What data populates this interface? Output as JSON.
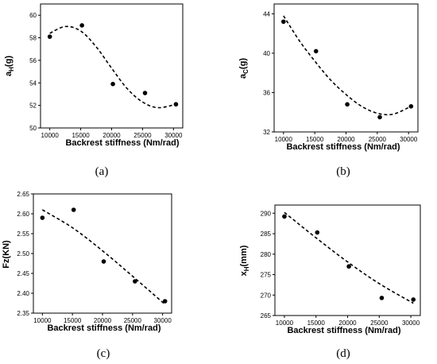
{
  "chart_data": [
    {
      "type": "scatter",
      "caption": "(a)",
      "ylabel_main": "a",
      "ylabel_sub": "H",
      "ylabel_tail": "(g)",
      "xlabel": "Backrest stiffness (Nm/rad)",
      "xlim": [
        8500,
        31500
      ],
      "ylim": [
        50,
        61
      ],
      "xticks": [
        10000,
        15000,
        20000,
        25000,
        30000
      ],
      "yticks": [
        50,
        52,
        54,
        56,
        58,
        60
      ],
      "points": [
        {
          "x": 10000,
          "y": 58.1
        },
        {
          "x": 15200,
          "y": 59.1
        },
        {
          "x": 20200,
          "y": 53.9
        },
        {
          "x": 25400,
          "y": 53.1
        },
        {
          "x": 30400,
          "y": 52.1
        }
      ],
      "fit": [
        {
          "x": 10000,
          "y": 58.4
        },
        {
          "x": 12500,
          "y": 59.0
        },
        {
          "x": 15000,
          "y": 58.6
        },
        {
          "x": 17500,
          "y": 57.2
        },
        {
          "x": 20000,
          "y": 55.3
        },
        {
          "x": 22500,
          "y": 53.5
        },
        {
          "x": 25000,
          "y": 52.3
        },
        {
          "x": 27500,
          "y": 51.8
        },
        {
          "x": 30400,
          "y": 52.1
        }
      ]
    },
    {
      "type": "scatter",
      "caption": "(b)",
      "ylabel_main": "a",
      "ylabel_sub": "C",
      "ylabel_tail": "(g)",
      "xlabel": "Backrest stiffness (Nm/rad)",
      "xlim": [
        8500,
        31500
      ],
      "ylim": [
        32,
        45
      ],
      "xticks": [
        10000,
        15000,
        20000,
        25000,
        30000
      ],
      "yticks": [
        32,
        36,
        40,
        44
      ],
      "points": [
        {
          "x": 10000,
          "y": 43.2
        },
        {
          "x": 15200,
          "y": 40.2
        },
        {
          "x": 20200,
          "y": 34.8
        },
        {
          "x": 25400,
          "y": 33.5
        },
        {
          "x": 30400,
          "y": 34.6
        }
      ],
      "fit": [
        {
          "x": 10000,
          "y": 43.8
        },
        {
          "x": 12500,
          "y": 41.3
        },
        {
          "x": 15000,
          "y": 39.2
        },
        {
          "x": 17500,
          "y": 37.3
        },
        {
          "x": 20000,
          "y": 35.8
        },
        {
          "x": 22500,
          "y": 34.6
        },
        {
          "x": 25000,
          "y": 33.9
        },
        {
          "x": 27500,
          "y": 33.8
        },
        {
          "x": 30400,
          "y": 34.6
        }
      ]
    },
    {
      "type": "scatter",
      "caption": "(c)",
      "ylabel_main": "Fz(KN)",
      "ylabel_sub": "",
      "ylabel_tail": "",
      "xlabel": "Backrest stiffness (Nm/rad)",
      "xlim": [
        8500,
        31500
      ],
      "ylim": [
        2.35,
        2.65
      ],
      "xticks": [
        10000,
        15000,
        20000,
        25000,
        30000
      ],
      "yticks": [
        2.35,
        2.4,
        2.45,
        2.5,
        2.55,
        2.6,
        2.65
      ],
      "ytick_decimals": 2,
      "points": [
        {
          "x": 10000,
          "y": 2.59
        },
        {
          "x": 15200,
          "y": 2.61
        },
        {
          "x": 20200,
          "y": 2.48
        },
        {
          "x": 25400,
          "y": 2.43
        },
        {
          "x": 30400,
          "y": 2.38
        }
      ],
      "fit": [
        {
          "x": 10000,
          "y": 2.61
        },
        {
          "x": 15000,
          "y": 2.565
        },
        {
          "x": 20000,
          "y": 2.507
        },
        {
          "x": 25000,
          "y": 2.443
        },
        {
          "x": 30400,
          "y": 2.372
        }
      ]
    },
    {
      "type": "scatter",
      "caption": "(d)",
      "ylabel_main": "x",
      "ylabel_sub": "H",
      "ylabel_tail": "(mm)",
      "xlabel": "Backrest stiffness (Nm/rad)",
      "xlim": [
        8500,
        31500
      ],
      "ylim": [
        265,
        292
      ],
      "xticks": [
        10000,
        15000,
        20000,
        25000,
        30000
      ],
      "yticks": [
        265,
        270,
        275,
        280,
        285,
        290
      ],
      "points": [
        {
          "x": 10000,
          "y": 289.2
        },
        {
          "x": 15200,
          "y": 285.3
        },
        {
          "x": 20200,
          "y": 277.0
        },
        {
          "x": 25400,
          "y": 269.3
        },
        {
          "x": 30400,
          "y": 268.9
        }
      ],
      "fit": [
        {
          "x": 10000,
          "y": 290.2
        },
        {
          "x": 15000,
          "y": 284.0
        },
        {
          "x": 20000,
          "y": 278.1
        },
        {
          "x": 25000,
          "y": 272.8
        },
        {
          "x": 30400,
          "y": 268.0
        }
      ]
    }
  ]
}
